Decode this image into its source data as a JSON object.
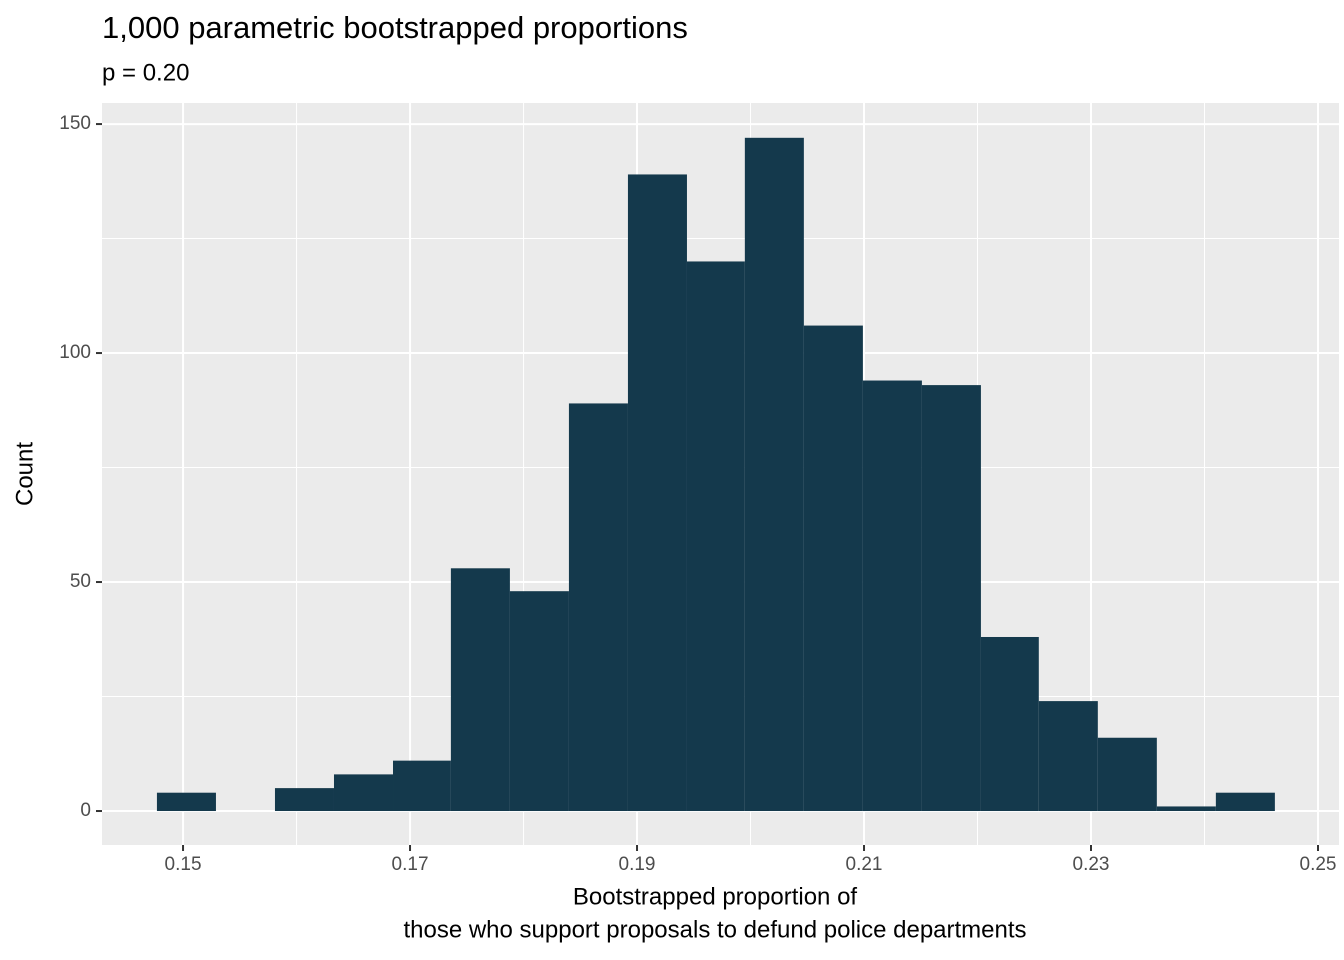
{
  "chart_data": {
    "type": "histogram",
    "title": "1,000 parametric bootstrapped proportions",
    "subtitle": "p = 0.20",
    "xlabel": [
      "Bootstrapped proportion of",
      "those who support proposals to defund police departments"
    ],
    "ylabel": "Count",
    "bins": [
      0.1477,
      0.1529,
      0.1581,
      0.1633,
      0.1685,
      0.1736,
      0.1788,
      0.184,
      0.1892,
      0.1944,
      0.1995,
      0.2047,
      0.2099,
      0.2151,
      0.2203,
      0.2254,
      0.2306,
      0.2358,
      0.241,
      0.2462
    ],
    "values": [
      4,
      0,
      5,
      8,
      11,
      53,
      48,
      89,
      139,
      120,
      147,
      106,
      94,
      93,
      38,
      24,
      16,
      1,
      4
    ],
    "color": "#14394c",
    "xlim": [
      0.14286,
      0.25185
    ],
    "ylim": [
      -7.42,
      154.6
    ],
    "xticks": [
      0.15,
      0.17,
      0.19,
      0.21,
      0.23,
      0.25
    ],
    "yticks": [
      0,
      50,
      100,
      150
    ],
    "xminorticks": [
      0.16,
      0.18,
      0.2,
      0.22,
      0.24
    ],
    "yminorticks": [
      25,
      75,
      125
    ],
    "grid": true
  }
}
